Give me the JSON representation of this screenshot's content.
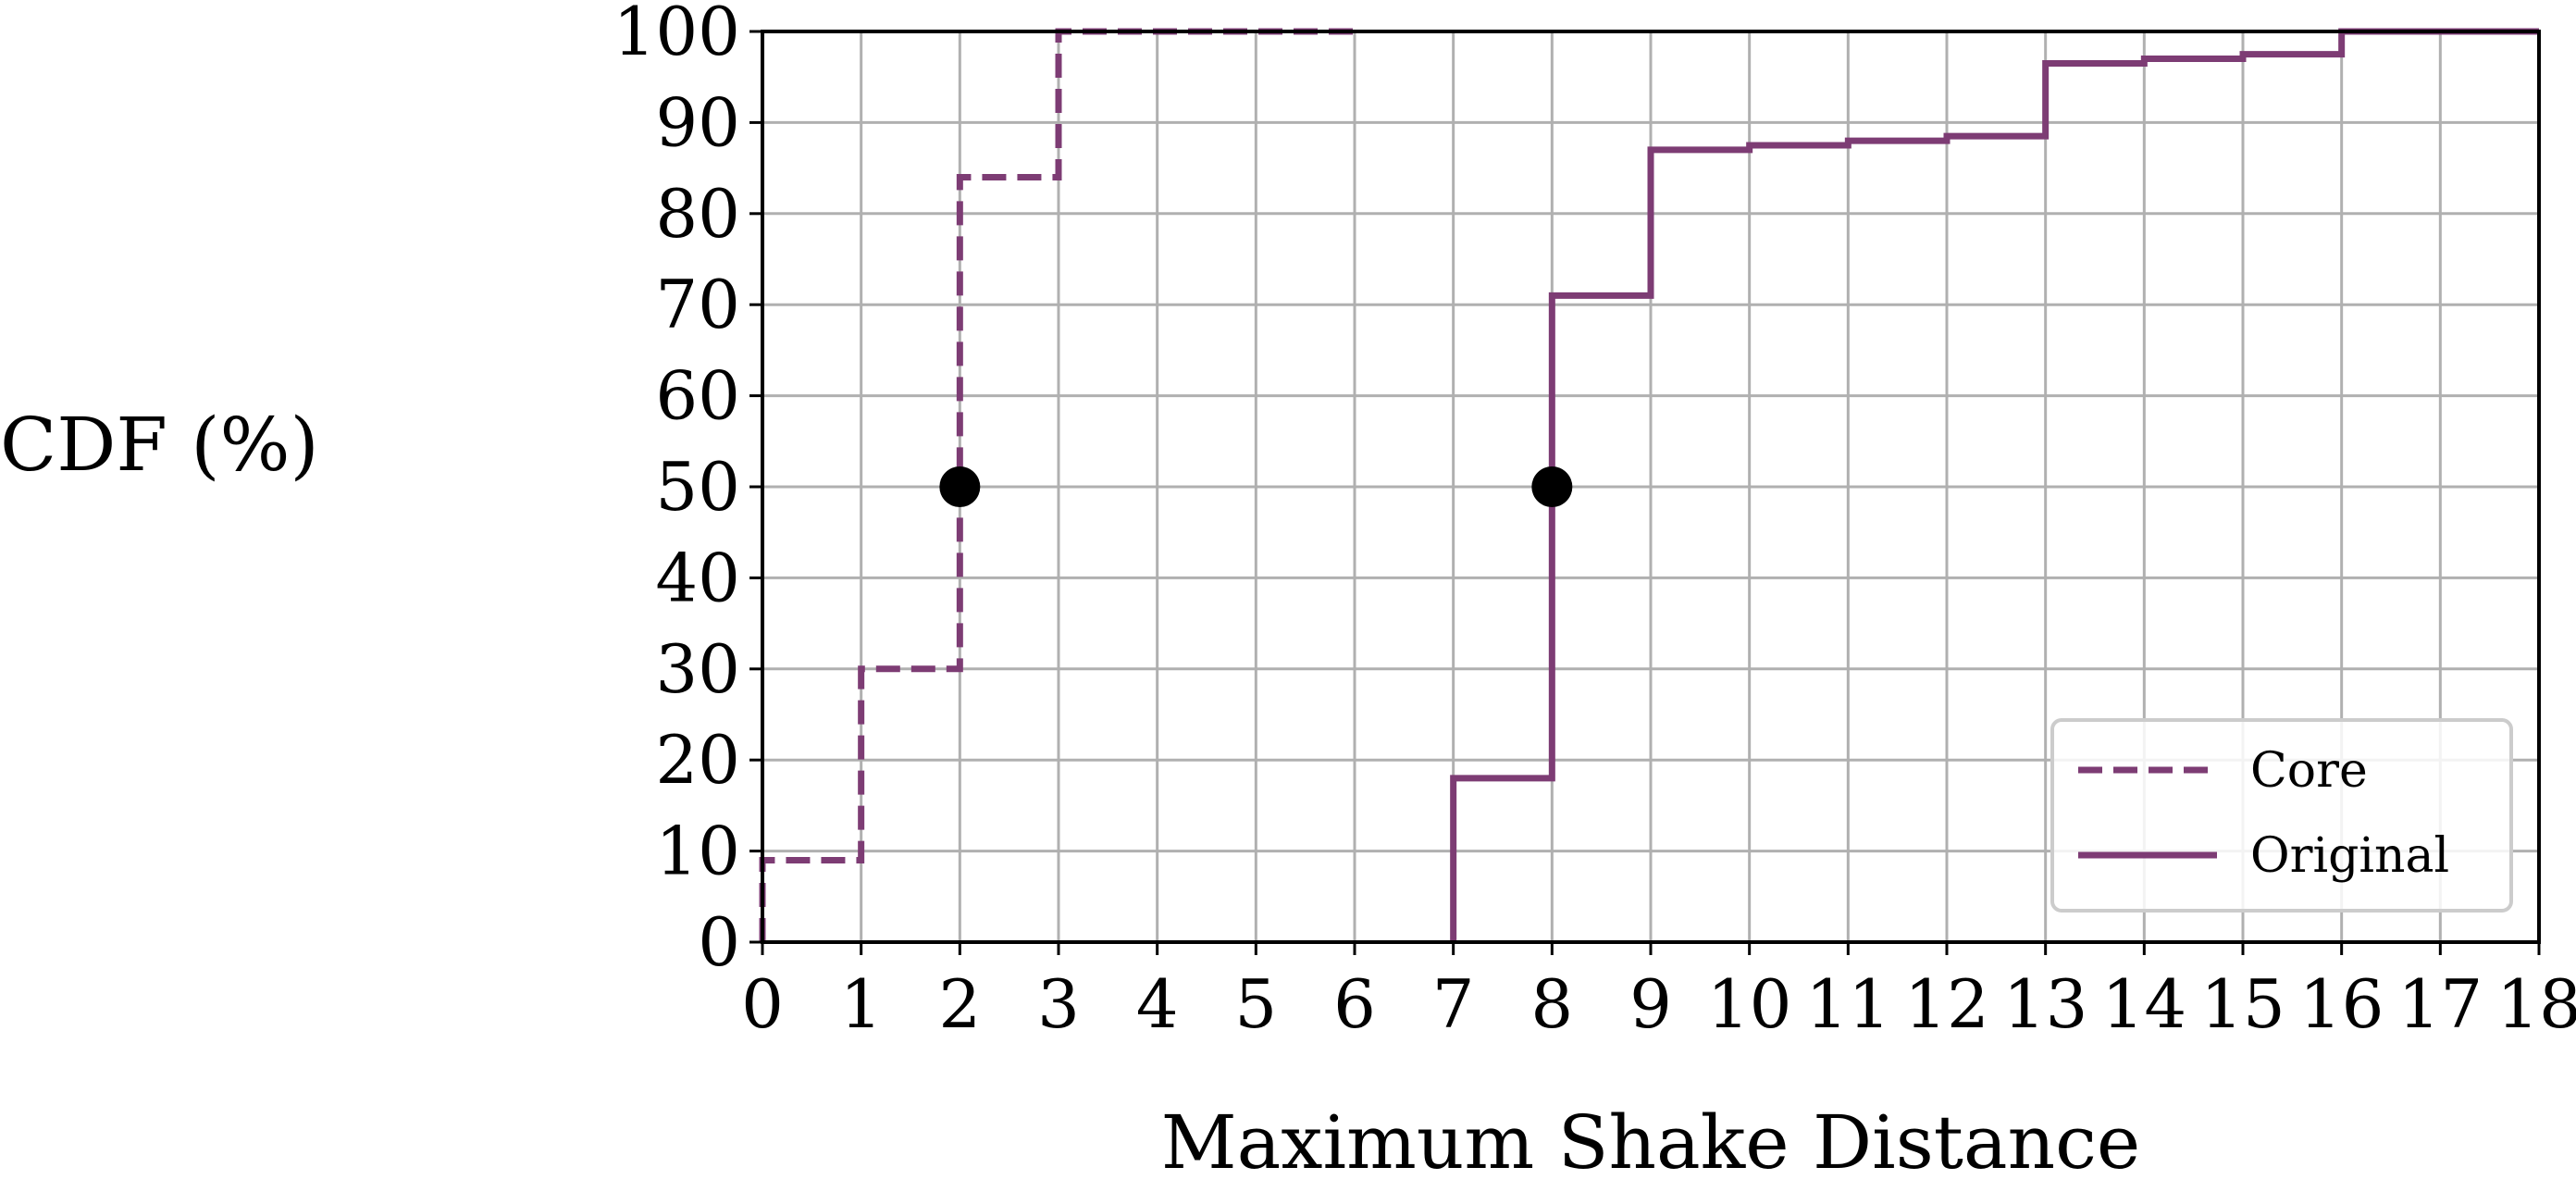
{
  "chart_data": {
    "type": "line",
    "title": "",
    "xlabel": "Maximum Shake Distance",
    "ylabel": "CDF (%)",
    "xlim": [
      0,
      18
    ],
    "ylim": [
      0,
      100
    ],
    "x_ticks": [
      "0",
      "1",
      "2",
      "3",
      "4",
      "5",
      "6",
      "7",
      "8",
      "9",
      "10",
      "11",
      "12",
      "13",
      "14",
      "15",
      "16",
      "17",
      "18"
    ],
    "y_ticks": [
      "0",
      "10",
      "20",
      "30",
      "40",
      "50",
      "60",
      "70",
      "80",
      "90",
      "100"
    ],
    "grid": true,
    "line_color": "#7d3c74",
    "marker_color": "#000000",
    "legend_position": "lower-right",
    "series": [
      {
        "name": "Core",
        "style": "dashed",
        "step": "post",
        "x": [
          0,
          1,
          2,
          3,
          6
        ],
        "y": [
          9,
          30,
          84,
          100,
          100
        ]
      },
      {
        "name": "Original",
        "style": "solid",
        "step": "post",
        "x": [
          7,
          8,
          9,
          10,
          11,
          12,
          13,
          14,
          15,
          16,
          18
        ],
        "y": [
          18,
          71,
          87,
          87.5,
          88,
          88.5,
          96.5,
          97,
          97.5,
          100,
          100
        ]
      }
    ],
    "medians": [
      {
        "x": 2,
        "y": 50
      },
      {
        "x": 8,
        "y": 50
      }
    ]
  }
}
